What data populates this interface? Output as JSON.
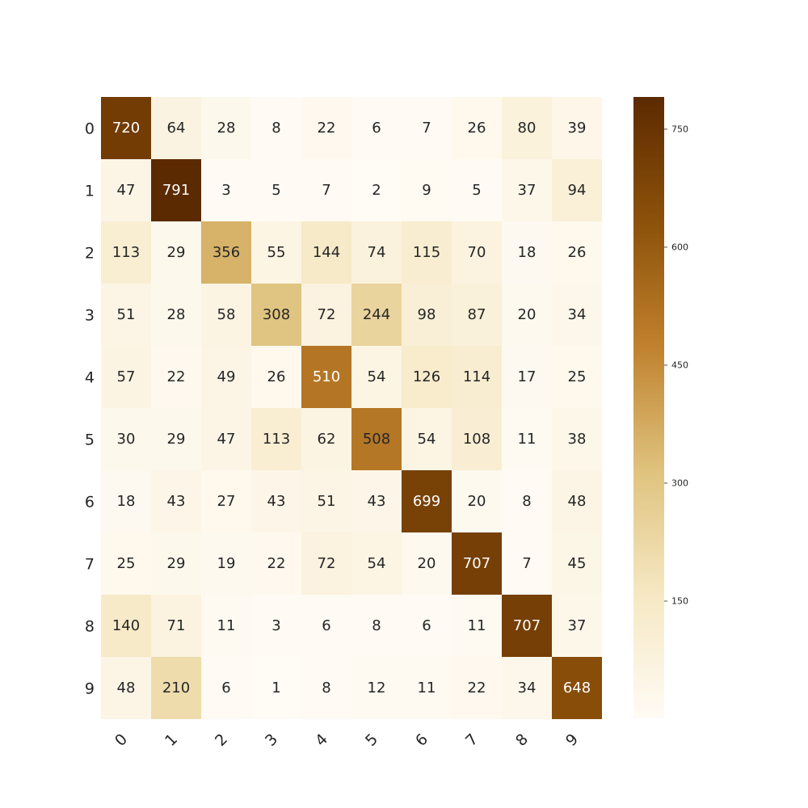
{
  "chart_data": {
    "type": "heatmap",
    "title": "",
    "xlabel": "",
    "ylabel": "",
    "x_categories": [
      "0",
      "1",
      "2",
      "3",
      "4",
      "5",
      "6",
      "7",
      "8",
      "9"
    ],
    "y_categories": [
      "0",
      "1",
      "2",
      "3",
      "4",
      "5",
      "6",
      "7",
      "8",
      "9"
    ],
    "values": [
      [
        720,
        64,
        28,
        8,
        22,
        6,
        7,
        26,
        80,
        39
      ],
      [
        47,
        791,
        3,
        5,
        7,
        2,
        9,
        5,
        37,
        94
      ],
      [
        113,
        29,
        356,
        55,
        144,
        74,
        115,
        70,
        18,
        26
      ],
      [
        51,
        28,
        58,
        308,
        72,
        244,
        98,
        87,
        20,
        34
      ],
      [
        57,
        22,
        49,
        26,
        510,
        54,
        126,
        114,
        17,
        25
      ],
      [
        30,
        29,
        47,
        113,
        62,
        508,
        54,
        108,
        11,
        38
      ],
      [
        18,
        43,
        27,
        43,
        51,
        43,
        699,
        20,
        8,
        48
      ],
      [
        25,
        29,
        19,
        22,
        72,
        54,
        20,
        707,
        7,
        45
      ],
      [
        140,
        71,
        11,
        3,
        6,
        8,
        6,
        11,
        707,
        37
      ],
      [
        48,
        210,
        6,
        1,
        8,
        12,
        11,
        22,
        34,
        648
      ]
    ],
    "colorbar": {
      "range": [
        1,
        791
      ],
      "ticks": [
        150,
        300,
        450,
        600,
        750
      ]
    },
    "colormap": [
      "#fffbf5",
      "#f6e8c3",
      "#dfc27d",
      "#bf812d",
      "#8c510a",
      "#5c2a00"
    ],
    "grid": false,
    "legend": "colorbar-right"
  }
}
